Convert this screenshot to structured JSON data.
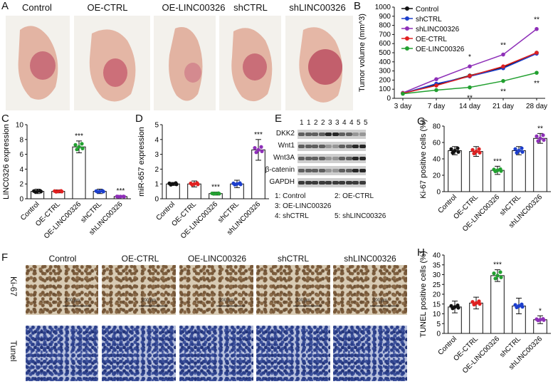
{
  "panels": {
    "A": "A",
    "B": "B",
    "C": "C",
    "D": "D",
    "E": "E",
    "F": "F",
    "G": "G",
    "H": "H"
  },
  "groups": [
    "Control",
    "OE-CTRL",
    "OE-LINC00326",
    "shCTRL",
    "shLINC00326"
  ],
  "photo_groups": [
    "Control",
    "OE-CTRL",
    "OE-LINC00326",
    "shCTRL",
    "shLINC00326"
  ],
  "ihc": {
    "rows": [
      "Ki-67",
      "Tunel"
    ],
    "scale_label": "100 μm"
  },
  "western": {
    "lanes": [
      "1",
      "1",
      "2",
      "2",
      "3",
      "3",
      "4",
      "4",
      "5",
      "5"
    ],
    "proteins": [
      "DKK2",
      "Wnt1",
      "Wnt3A",
      "β-catenin",
      "GAPDH"
    ],
    "legend": [
      "1: Control",
      "2: OE-CTRL",
      "3: OE-LINC00326",
      "4: shCTRL",
      "5: shLINC00326"
    ]
  },
  "colors": {
    "Control": "#111111",
    "OE-CTRL": "#e02020",
    "OE-LINC00326": "#22a030",
    "shCTRL": "#1d3fcc",
    "shLINC00326": "#8e2fb8"
  },
  "chart_data": [
    {
      "panel": "B",
      "type": "line",
      "ylabel": "Tumor volume (mm^3)",
      "x": [
        "3 day",
        "7 day",
        "14 day",
        "21 day",
        "28 day"
      ],
      "ylim": [
        0,
        1000
      ],
      "yticks": [
        0,
        100,
        200,
        300,
        400,
        500,
        600,
        700,
        800,
        900,
        1000
      ],
      "series": [
        {
          "name": "Control",
          "values": [
            55,
            150,
            250,
            340,
            500
          ]
        },
        {
          "name": "shCTRL",
          "values": [
            55,
            160,
            240,
            330,
            490
          ]
        },
        {
          "name": "shLINC00326",
          "values": [
            60,
            210,
            350,
            480,
            760
          ]
        },
        {
          "name": "OE-CTRL",
          "values": [
            55,
            140,
            245,
            350,
            500
          ]
        },
        {
          "name": "OE-LINC00326",
          "values": [
            50,
            90,
            120,
            190,
            280
          ]
        }
      ],
      "annotations": [
        {
          "x": "14 day",
          "series": "shLINC00326",
          "text": "*"
        },
        {
          "x": "21 day",
          "series": "shLINC00326",
          "text": "**"
        },
        {
          "x": "28 day",
          "series": "shLINC00326",
          "text": "**"
        },
        {
          "x": "14 day",
          "series": "OE-LINC00326",
          "text": "**"
        },
        {
          "x": "21 day",
          "series": "OE-LINC00326",
          "text": "**"
        },
        {
          "x": "28 day",
          "series": "OE-LINC00326",
          "text": "**"
        }
      ]
    },
    {
      "panel": "C",
      "type": "bar",
      "ylabel": "LINC0326 expression",
      "ylim": [
        0,
        10
      ],
      "yticks": [
        0,
        2,
        4,
        6,
        8,
        10
      ],
      "categories": [
        "Control",
        "OE-CTRL",
        "OE-LINC00326",
        "shCTRL",
        "shLINC00326"
      ],
      "values": [
        1.0,
        1.0,
        7.0,
        1.0,
        0.3
      ],
      "errors": [
        0.3,
        0.2,
        0.8,
        0.3,
        0.1
      ],
      "annotations": [
        "",
        "",
        "***",
        "",
        "***"
      ]
    },
    {
      "panel": "D",
      "type": "bar",
      "ylabel": "miR-657 expression",
      "ylim": [
        0,
        5
      ],
      "yticks": [
        0,
        1,
        2,
        3,
        4,
        5
      ],
      "categories": [
        "Control",
        "OE-CTRL",
        "OE-LINC00326",
        "shCTRL",
        "shLINC00326"
      ],
      "values": [
        1.0,
        1.0,
        0.35,
        1.0,
        3.3
      ],
      "errors": [
        0.1,
        0.2,
        0.1,
        0.25,
        0.7
      ],
      "annotations": [
        "",
        "",
        "***",
        "",
        "***"
      ]
    },
    {
      "panel": "G",
      "type": "bar",
      "ylabel": "Ki-67 positive cells (%)",
      "ylim": [
        0,
        80
      ],
      "yticks": [
        0,
        20,
        40,
        60,
        80
      ],
      "categories": [
        "Control",
        "OE-CTRL",
        "OE-LINC00326",
        "shCTRL",
        "shLINC00326"
      ],
      "values": [
        50,
        49,
        26,
        50,
        65
      ],
      "errors": [
        5,
        6,
        5,
        5,
        6
      ],
      "annotations": [
        "",
        "",
        "***",
        "",
        "**"
      ]
    },
    {
      "panel": "H",
      "type": "bar",
      "ylabel": "TUNEL positive cells (%)",
      "ylim": [
        0,
        40
      ],
      "yticks": [
        0,
        5,
        10,
        15,
        20,
        25,
        30,
        35,
        40
      ],
      "categories": [
        "Control",
        "OE-CTRL",
        "OE-LINC00326",
        "shCTRL",
        "shLINC00326"
      ],
      "values": [
        13.5,
        15.5,
        29.5,
        14,
        7
      ],
      "errors": [
        3,
        3,
        3,
        4,
        2
      ],
      "annotations": [
        "",
        "",
        "***",
        "",
        "*"
      ]
    }
  ]
}
